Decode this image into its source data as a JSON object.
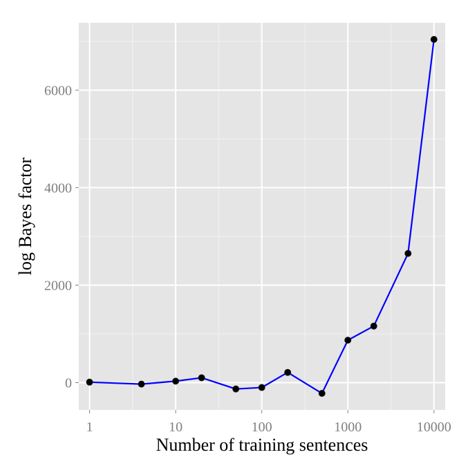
{
  "chart_data": {
    "type": "line",
    "title": "",
    "xlabel": "Number of training sentences",
    "ylabel": "log Bayes factor",
    "x_scale": "log10",
    "xlim": [
      0.75,
      13500
    ],
    "ylim": [
      -560,
      7380
    ],
    "x_ticks": [
      1,
      10,
      100,
      1000,
      10000
    ],
    "x_tick_labels": [
      "1",
      "10",
      "100",
      "1000",
      "10000"
    ],
    "y_ticks": [
      0,
      2000,
      4000,
      6000
    ],
    "y_tick_labels": [
      "0",
      "2000",
      "4000",
      "6000"
    ],
    "grid": true,
    "series": [
      {
        "x": [
          1,
          4,
          10,
          20,
          50,
          100,
          200,
          500,
          1000,
          2000,
          5000,
          10000
        ],
        "y": [
          10,
          -30,
          30,
          100,
          -130,
          -100,
          210,
          -220,
          870,
          1160,
          2650,
          7040
        ]
      }
    ],
    "colors": {
      "panel": "#e5e5e5",
      "grid_major": "#ffffff",
      "grid_minor": "#f2f2f2",
      "line": "#0000ff",
      "point": "#000000"
    }
  }
}
